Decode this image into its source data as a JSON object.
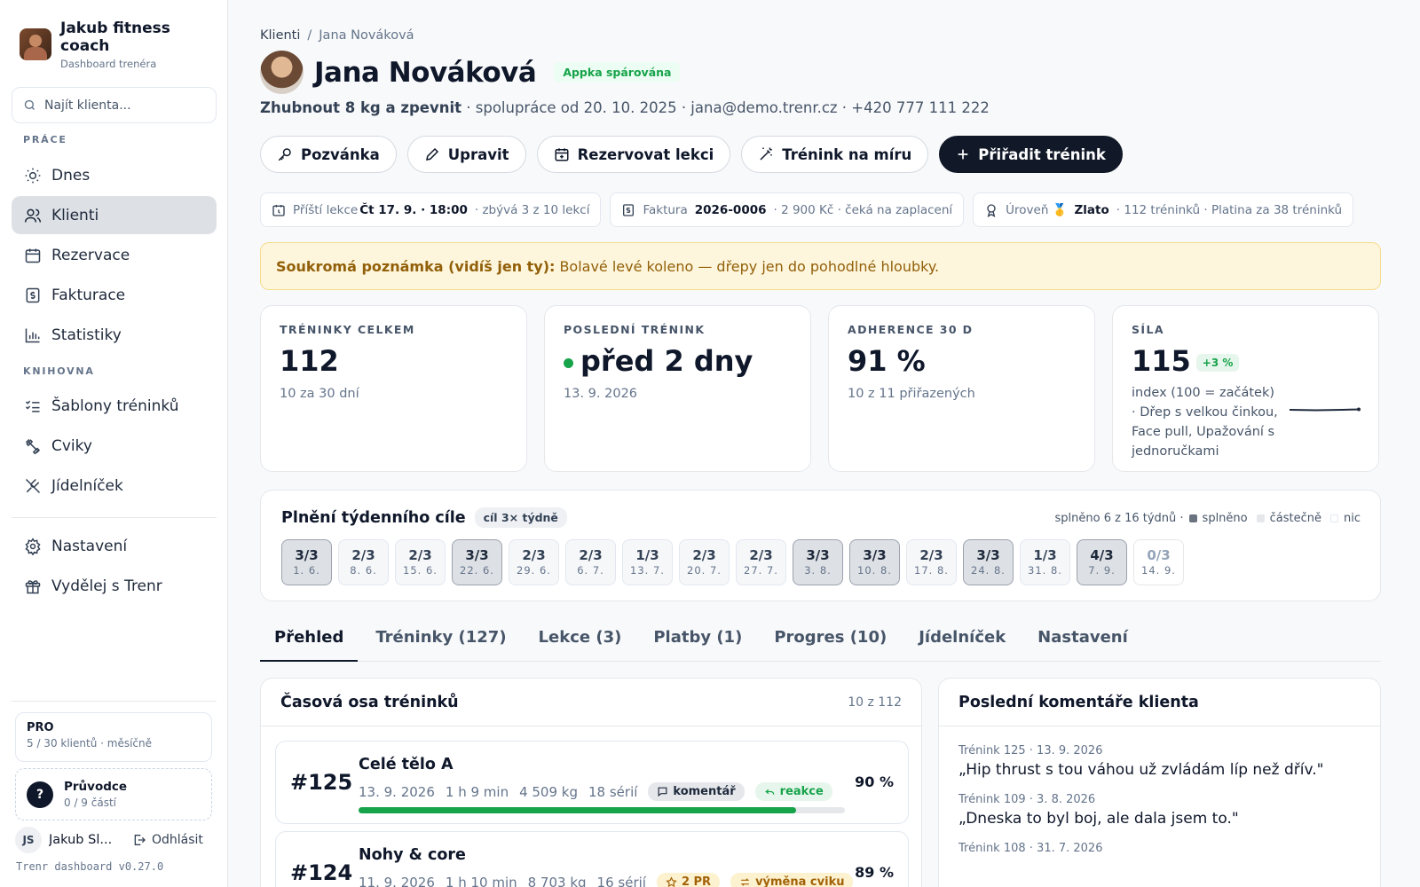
{
  "sidebar": {
    "brand_name": "Jakub fitness coach",
    "brand_sub": "Dashboard trenéra",
    "search_placeholder": "Najít klienta...",
    "section_work": "PRÁCE",
    "section_library": "KNIHOVNA",
    "items": [
      {
        "label": "Dnes",
        "icon": "sun-icon"
      },
      {
        "label": "Klienti",
        "icon": "users-icon",
        "active": true
      },
      {
        "label": "Rezervace",
        "icon": "calendar-icon"
      },
      {
        "label": "Fakturace",
        "icon": "invoice-icon"
      },
      {
        "label": "Statistiky",
        "icon": "bar-chart-icon"
      },
      {
        "label": "Šablony tréninků",
        "icon": "list-check-icon"
      },
      {
        "label": "Cviky",
        "icon": "dumbbell-icon"
      },
      {
        "label": "Jídelníček",
        "icon": "utensils-icon"
      },
      {
        "label": "Nastavení",
        "icon": "gear-icon"
      },
      {
        "label": "Vydělej s Trenr",
        "icon": "gift-icon"
      }
    ],
    "plan_title": "PRO",
    "plan_sub": "5 / 30 klientů · měsíčně",
    "guide_title": "Průvodce",
    "guide_sub": "0 / 9 částí",
    "guide_mark": "?",
    "user_initials": "JS",
    "user_name": "Jakub Sl...",
    "logout": "Odhlásit",
    "version": "Trenr dashboard v0.27.0"
  },
  "breadcrumb": {
    "root": "Klienti",
    "sep": "/",
    "current": "Jana Nováková"
  },
  "client": {
    "name": "Jana Nováková",
    "paired_badge": "Appka spárována",
    "goal": "Zhubnout 8 kg a zpevnit",
    "meta": " · spolupráce od 20. 10. 2025 · jana@demo.trenr.cz · +420 777 111 222"
  },
  "actions": {
    "invite": "Pozvánka",
    "edit": "Upravit",
    "book": "Rezervovat lekci",
    "custom": "Trénink na míru",
    "assign": "Přiřadit trénink"
  },
  "chips": {
    "next_prefix": "Příští lekce",
    "next_value": "Čt 17. 9. · 18:00",
    "next_suffix": "· zbývá 3 z 10 lekcí",
    "invoice_prefix": "Faktura",
    "invoice_value": "2026-0006",
    "invoice_suffix": "· 2 900 Kč · čeká na zaplacení",
    "level_prefix": "Úroveň 🥇",
    "level_value": "Zlato",
    "level_suffix": "· 112 tréninků · Platina za 38 tréninků"
  },
  "note": {
    "label": "Soukromá poznámka (vidíš jen ty):",
    "text": "Bolavé levé koleno — dřepy jen do pohodlné hloubky."
  },
  "stats": {
    "total": {
      "label": "TRÉNINKY CELKEM",
      "value": "112",
      "sub": "10 za 30 dní"
    },
    "last": {
      "label": "POSLEDNÍ TRÉNINK",
      "value": "před 2 dny",
      "sub": "13. 9. 2026"
    },
    "adherence": {
      "label": "ADHERENCE 30 D",
      "value": "91 %",
      "sub": "10 z 11 přiřazených"
    },
    "strength": {
      "label": "SÍLA",
      "value": "115",
      "delta": "+3 %",
      "desc": "index (100 = začátek) · Dřep s velkou činkou, Face pull, Upažování s jednoručkami"
    }
  },
  "weekly": {
    "title": "Plnění týdenního cíle",
    "goal": "cíl 3× týdně",
    "summary": "splněno 6 z 16 týdnů ·",
    "legend_full": "splněno",
    "legend_partial": "částečně",
    "legend_none": "nic",
    "weeks": [
      {
        "r": "3/3",
        "d": "1. 6.",
        "s": "full"
      },
      {
        "r": "2/3",
        "d": "8. 6.",
        "s": "partial"
      },
      {
        "r": "2/3",
        "d": "15. 6.",
        "s": "partial"
      },
      {
        "r": "3/3",
        "d": "22. 6.",
        "s": "full"
      },
      {
        "r": "2/3",
        "d": "29. 6.",
        "s": "partial"
      },
      {
        "r": "2/3",
        "d": "6. 7.",
        "s": "partial"
      },
      {
        "r": "1/3",
        "d": "13. 7.",
        "s": "partial"
      },
      {
        "r": "2/3",
        "d": "20. 7.",
        "s": "partial"
      },
      {
        "r": "2/3",
        "d": "27. 7.",
        "s": "partial"
      },
      {
        "r": "3/3",
        "d": "3. 8.",
        "s": "full"
      },
      {
        "r": "3/3",
        "d": "10. 8.",
        "s": "full"
      },
      {
        "r": "2/3",
        "d": "17. 8.",
        "s": "partial"
      },
      {
        "r": "3/3",
        "d": "24. 8.",
        "s": "full"
      },
      {
        "r": "1/3",
        "d": "31. 8.",
        "s": "partial"
      },
      {
        "r": "4/3",
        "d": "7. 9.",
        "s": "full"
      },
      {
        "r": "0/3",
        "d": "14. 9.",
        "s": "none"
      }
    ]
  },
  "tabs": [
    "Přehled",
    "Tréninky (127)",
    "Lekce (3)",
    "Platby (1)",
    "Progres (10)",
    "Jídelníček",
    "Nastavení"
  ],
  "timeline": {
    "title": "Časová osa tréninků",
    "count": "10 z 112",
    "items": [
      {
        "num": "#125",
        "name": "Celé tělo A",
        "date": "13. 9. 2026",
        "duration": "1 h 9 min",
        "volume": "4 509 kg",
        "sets": "18 sérií",
        "tag1": "komentář",
        "tag2": "reakce",
        "pct": "90 %",
        "progress": 0.9
      },
      {
        "num": "#124",
        "name": "Nohy & core",
        "date": "11. 9. 2026",
        "duration": "1 h 10 min",
        "volume": "8 703 kg",
        "sets": "16 sérií",
        "tag1": "2 PR",
        "tag2": "výměna cviku",
        "pct": "89 %",
        "progress": 0.89
      }
    ]
  },
  "comments": {
    "title": "Poslední komentáře klienta",
    "items": [
      {
        "meta": "Trénink 125 · 13. 9. 2026",
        "text": "„Hip thrust s tou váhou už zvládám líp než dřív.\""
      },
      {
        "meta": "Trénink 109 · 3. 8. 2026",
        "text": "„Dneska to byl boj, ale dala jsem to.\""
      },
      {
        "meta": "Trénink 108 · 31. 7. 2026",
        "text": ""
      }
    ]
  },
  "colors": {
    "accent": "#111827",
    "success": "#16a34a",
    "note_bg": "#fef6dc",
    "note_text": "#92600a"
  }
}
